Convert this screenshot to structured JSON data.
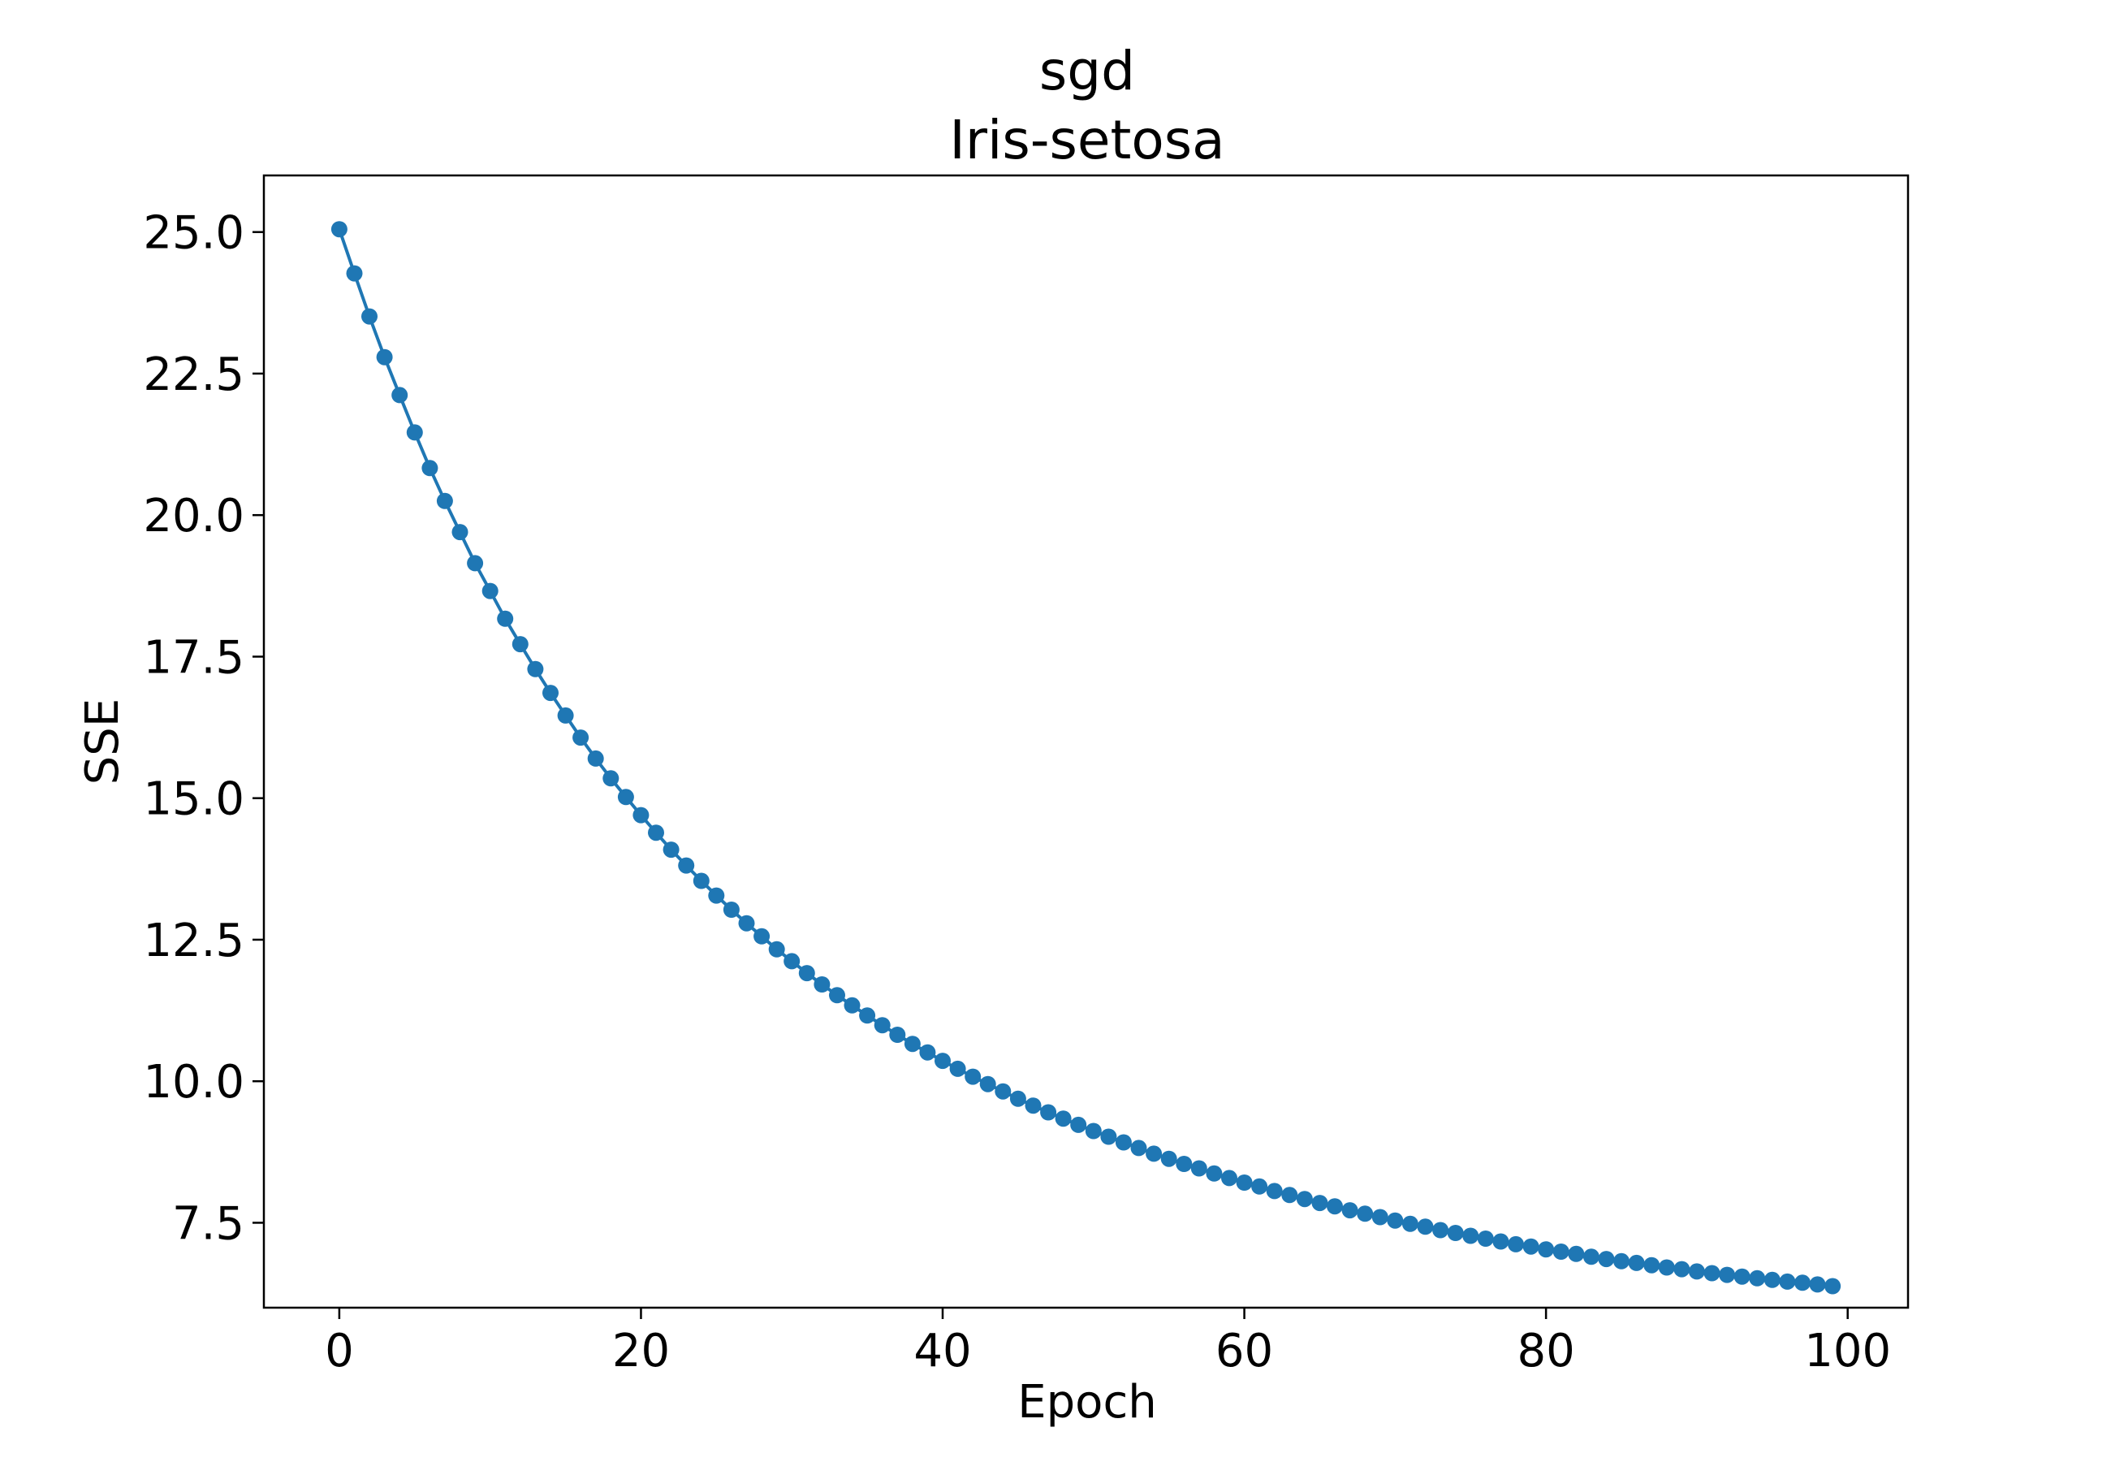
{
  "chart_data": {
    "type": "line",
    "title": "sgd",
    "subtitle": "Iris-setosa",
    "xlabel": "Epoch",
    "ylabel": "SSE",
    "xlim": [
      -5,
      104
    ],
    "ylim": [
      6.0,
      26.0
    ],
    "xticks": [
      0,
      20,
      40,
      60,
      80,
      100
    ],
    "xtick_labels": [
      "0",
      "20",
      "40",
      "60",
      "80",
      "100"
    ],
    "yticks": [
      7.5,
      10.0,
      12.5,
      15.0,
      17.5,
      20.0,
      22.5,
      25.0
    ],
    "ytick_labels": [
      "7.5",
      "10.0",
      "12.5",
      "15.0",
      "17.5",
      "20.0",
      "22.5",
      "25.0"
    ],
    "grid": false,
    "legend": "none",
    "series": [
      {
        "color": "#1f77b4",
        "marker": "circle",
        "x": [
          0,
          1,
          2,
          3,
          4,
          5,
          6,
          7,
          8,
          9,
          10,
          11,
          12,
          13,
          14,
          15,
          16,
          17,
          18,
          19,
          20,
          21,
          22,
          23,
          24,
          25,
          26,
          27,
          28,
          29,
          30,
          31,
          32,
          33,
          34,
          35,
          36,
          37,
          38,
          39,
          40,
          41,
          42,
          43,
          44,
          45,
          46,
          47,
          48,
          49,
          50,
          51,
          52,
          53,
          54,
          55,
          56,
          57,
          58,
          59,
          60,
          61,
          62,
          63,
          64,
          65,
          66,
          67,
          68,
          69,
          70,
          71,
          72,
          73,
          74,
          75,
          76,
          77,
          78,
          79,
          80,
          81,
          82,
          83,
          84,
          85,
          86,
          87,
          88,
          89,
          90,
          91,
          92,
          93,
          94,
          95,
          96,
          97,
          98,
          99
        ],
        "y": [
          25.05,
          24.27,
          23.51,
          22.79,
          22.12,
          21.46,
          20.83,
          20.25,
          19.7,
          19.15,
          18.66,
          18.17,
          17.72,
          17.28,
          16.86,
          16.46,
          16.07,
          15.7,
          15.35,
          15.02,
          14.7,
          14.39,
          14.09,
          13.81,
          13.54,
          13.28,
          13.03,
          12.79,
          12.56,
          12.33,
          12.12,
          11.91,
          11.71,
          11.52,
          11.34,
          11.16,
          10.99,
          10.82,
          10.66,
          10.51,
          10.36,
          10.22,
          10.08,
          9.95,
          9.82,
          9.69,
          9.57,
          9.45,
          9.34,
          9.23,
          9.12,
          9.02,
          8.92,
          8.82,
          8.72,
          8.63,
          8.54,
          8.46,
          8.37,
          8.29,
          8.21,
          8.14,
          8.06,
          7.99,
          7.92,
          7.85,
          7.79,
          7.72,
          7.66,
          7.6,
          7.54,
          7.48,
          7.43,
          7.37,
          7.32,
          7.27,
          7.22,
          7.17,
          7.12,
          7.08,
          7.03,
          6.99,
          6.95,
          6.9,
          6.86,
          6.82,
          6.79,
          6.75,
          6.71,
          6.68,
          6.64,
          6.61,
          6.58,
          6.55,
          6.52,
          6.49,
          6.46,
          6.44,
          6.41,
          6.38
        ]
      }
    ]
  }
}
